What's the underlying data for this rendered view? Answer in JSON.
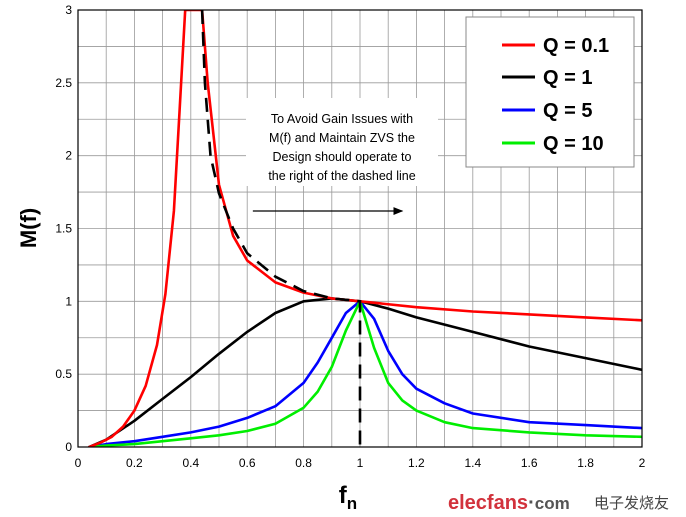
{
  "chart_data": {
    "type": "line",
    "xlabel": "f",
    "xlabel_sub": "n",
    "ylabel": "M(f)",
    "xlim": [
      0,
      2
    ],
    "ylim": [
      0,
      3
    ],
    "x_ticks": [
      0,
      0.2,
      0.4,
      0.6,
      0.8,
      1,
      1.2,
      1.4,
      1.6,
      1.8,
      2
    ],
    "x_tick_labels": [
      "0",
      "0.2",
      "0.4",
      "0.6",
      "0.8",
      "1",
      "1.2",
      "1.4",
      "1.6",
      "1.8",
      "2"
    ],
    "y_ticks": [
      0,
      0.5,
      1,
      1.5,
      2,
      2.5,
      3
    ],
    "y_tick_labels": [
      "0",
      "0.5",
      "1",
      "1.5",
      "2",
      "2.5",
      "3"
    ],
    "grid": true,
    "legend_position": "top-right",
    "series": [
      {
        "name": "Q = 0.1",
        "color": "#ff0000",
        "x": [
          0.04,
          0.08,
          0.12,
          0.16,
          0.2,
          0.24,
          0.28,
          0.31,
          0.34,
          0.36,
          0.38,
          0.4,
          0.42,
          0.44,
          0.46,
          0.5,
          0.55,
          0.6,
          0.7,
          0.8,
          0.9,
          1.0,
          1.2,
          1.4,
          1.6,
          1.8,
          2.0
        ],
        "y": [
          0.0,
          0.03,
          0.07,
          0.14,
          0.25,
          0.42,
          0.7,
          1.05,
          1.62,
          2.3,
          3.0,
          3.0,
          3.0,
          3.0,
          2.5,
          1.8,
          1.45,
          1.28,
          1.13,
          1.06,
          1.02,
          1.0,
          0.96,
          0.93,
          0.91,
          0.89,
          0.87
        ]
      },
      {
        "name": "Q = 1",
        "color": "#000000",
        "x": [
          0.04,
          0.1,
          0.2,
          0.3,
          0.4,
          0.5,
          0.6,
          0.7,
          0.8,
          0.9,
          1.0,
          1.1,
          1.2,
          1.4,
          1.6,
          1.8,
          2.0
        ],
        "y": [
          0.0,
          0.05,
          0.18,
          0.33,
          0.48,
          0.64,
          0.79,
          0.92,
          1.0,
          1.02,
          1.0,
          0.95,
          0.89,
          0.79,
          0.69,
          0.61,
          0.53
        ]
      },
      {
        "name": "Q = 5",
        "color": "#0000ff",
        "x": [
          0.04,
          0.1,
          0.2,
          0.3,
          0.4,
          0.5,
          0.6,
          0.7,
          0.8,
          0.85,
          0.9,
          0.95,
          1.0,
          1.05,
          1.1,
          1.15,
          1.2,
          1.3,
          1.4,
          1.6,
          1.8,
          2.0
        ],
        "y": [
          0.0,
          0.02,
          0.04,
          0.07,
          0.1,
          0.14,
          0.2,
          0.28,
          0.44,
          0.58,
          0.75,
          0.92,
          1.0,
          0.88,
          0.66,
          0.5,
          0.4,
          0.3,
          0.23,
          0.17,
          0.15,
          0.13
        ]
      },
      {
        "name": "Q = 10",
        "color": "#00ee00",
        "x": [
          0.04,
          0.1,
          0.2,
          0.3,
          0.4,
          0.5,
          0.6,
          0.7,
          0.8,
          0.85,
          0.9,
          0.95,
          1.0,
          1.05,
          1.1,
          1.15,
          1.2,
          1.3,
          1.4,
          1.6,
          1.8,
          2.0
        ],
        "y": [
          0.0,
          0.01,
          0.02,
          0.04,
          0.06,
          0.08,
          0.11,
          0.16,
          0.27,
          0.38,
          0.55,
          0.8,
          1.0,
          0.68,
          0.44,
          0.32,
          0.25,
          0.17,
          0.13,
          0.1,
          0.08,
          0.07
        ]
      }
    ],
    "dashed_boundary": {
      "color": "#000000",
      "x": [
        0.44,
        0.45,
        0.47,
        0.5,
        0.55,
        0.6,
        0.7,
        0.8,
        0.9,
        1.0,
        1.0
      ],
      "y": [
        3.0,
        2.5,
        2.0,
        1.74,
        1.5,
        1.33,
        1.17,
        1.07,
        1.02,
        1.0,
        0.0
      ]
    },
    "annotation": {
      "lines": [
        "To Avoid Gain Issues with",
        "M(f) and Maintain ZVS the",
        "Design should operate to",
        "the right of the dashed line"
      ],
      "arrow_from": [
        0.62,
        1.62
      ],
      "arrow_to": [
        1.15,
        1.62
      ]
    }
  },
  "watermark": {
    "site": "elecfans",
    "dot": "·",
    "tld": "com",
    "cn": "电子发烧友"
  }
}
